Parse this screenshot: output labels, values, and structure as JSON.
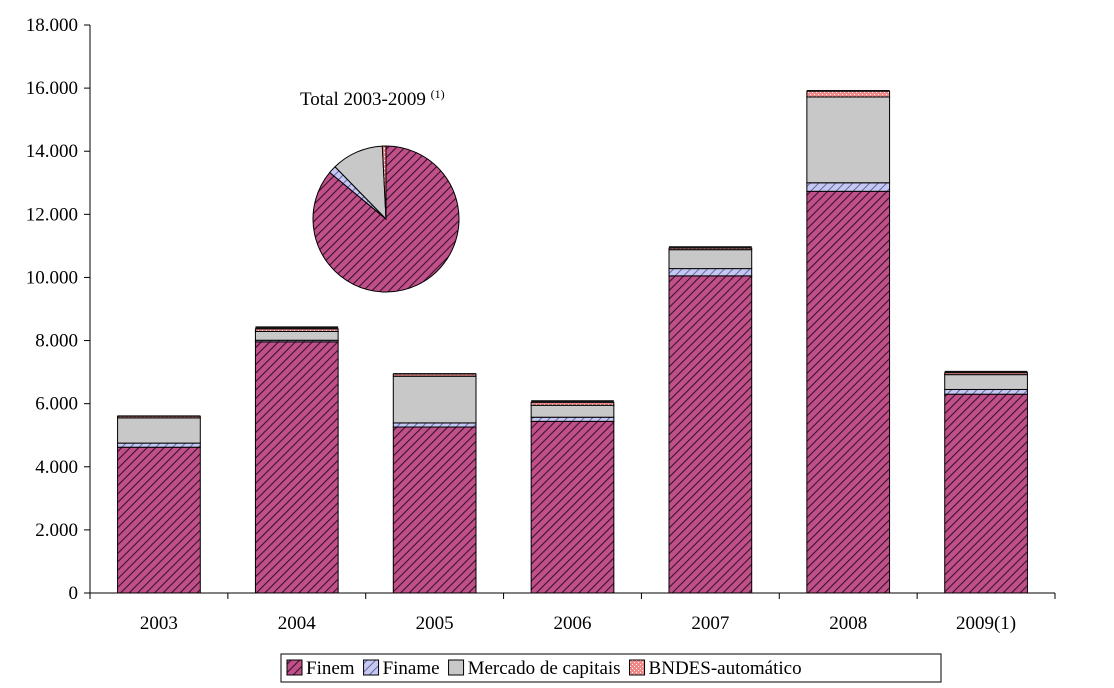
{
  "colors": {
    "finem_bg": "#c0508a",
    "finem_stripe": "#3a1228",
    "finame_bg": "#c6c8f0",
    "finame_stripe": "#4a4f9a",
    "mercado": "#c8c8c8",
    "bndes": "#f08888",
    "bndes_grid": "#ffffff",
    "dark_cap": "#111111",
    "axis": "#000000"
  },
  "chart_data": {
    "type": "bar",
    "stacked": true,
    "categories": [
      "2003",
      "2004",
      "2005",
      "2006",
      "2007",
      "2008",
      "2009(1)"
    ],
    "ylim": [
      0,
      18000
    ],
    "yticks": [
      0,
      2000,
      4000,
      6000,
      8000,
      10000,
      12000,
      14000,
      16000,
      18000
    ],
    "ytick_labels": [
      "0",
      "2.000",
      "4.000",
      "6.000",
      "8.000",
      "10.000",
      "12.000",
      "14.000",
      "16.000",
      "18.000"
    ],
    "grid": false,
    "legend_position": "bottom",
    "series": [
      {
        "name": "Finem",
        "key": "finem",
        "values": [
          4620,
          7960,
          5260,
          5440,
          10050,
          12730,
          6300
        ]
      },
      {
        "name": "Finame",
        "key": "finame",
        "values": [
          130,
          50,
          130,
          130,
          230,
          270,
          150
        ]
      },
      {
        "name": "Mercado de capitais",
        "key": "mercado",
        "values": [
          800,
          280,
          1480,
          380,
          600,
          2720,
          470
        ]
      },
      {
        "name": "BNDES-automático",
        "key": "bndes",
        "values": [
          50,
          80,
          70,
          90,
          50,
          180,
          60
        ]
      }
    ],
    "caps": [
      30,
      80,
      30,
      70,
      60,
      40,
      60
    ],
    "inset_pie": {
      "title": "Total 2003-2009",
      "title_sup": "(1)",
      "slices": [
        {
          "name": "Finem",
          "key": "finem",
          "value": 86.0
        },
        {
          "name": "Finame",
          "key": "finame",
          "value": 1.7
        },
        {
          "name": "Mercado de capitais",
          "key": "mercado",
          "value": 11.5
        },
        {
          "name": "BNDES-automático",
          "key": "bndes",
          "value": 0.8
        }
      ]
    }
  }
}
